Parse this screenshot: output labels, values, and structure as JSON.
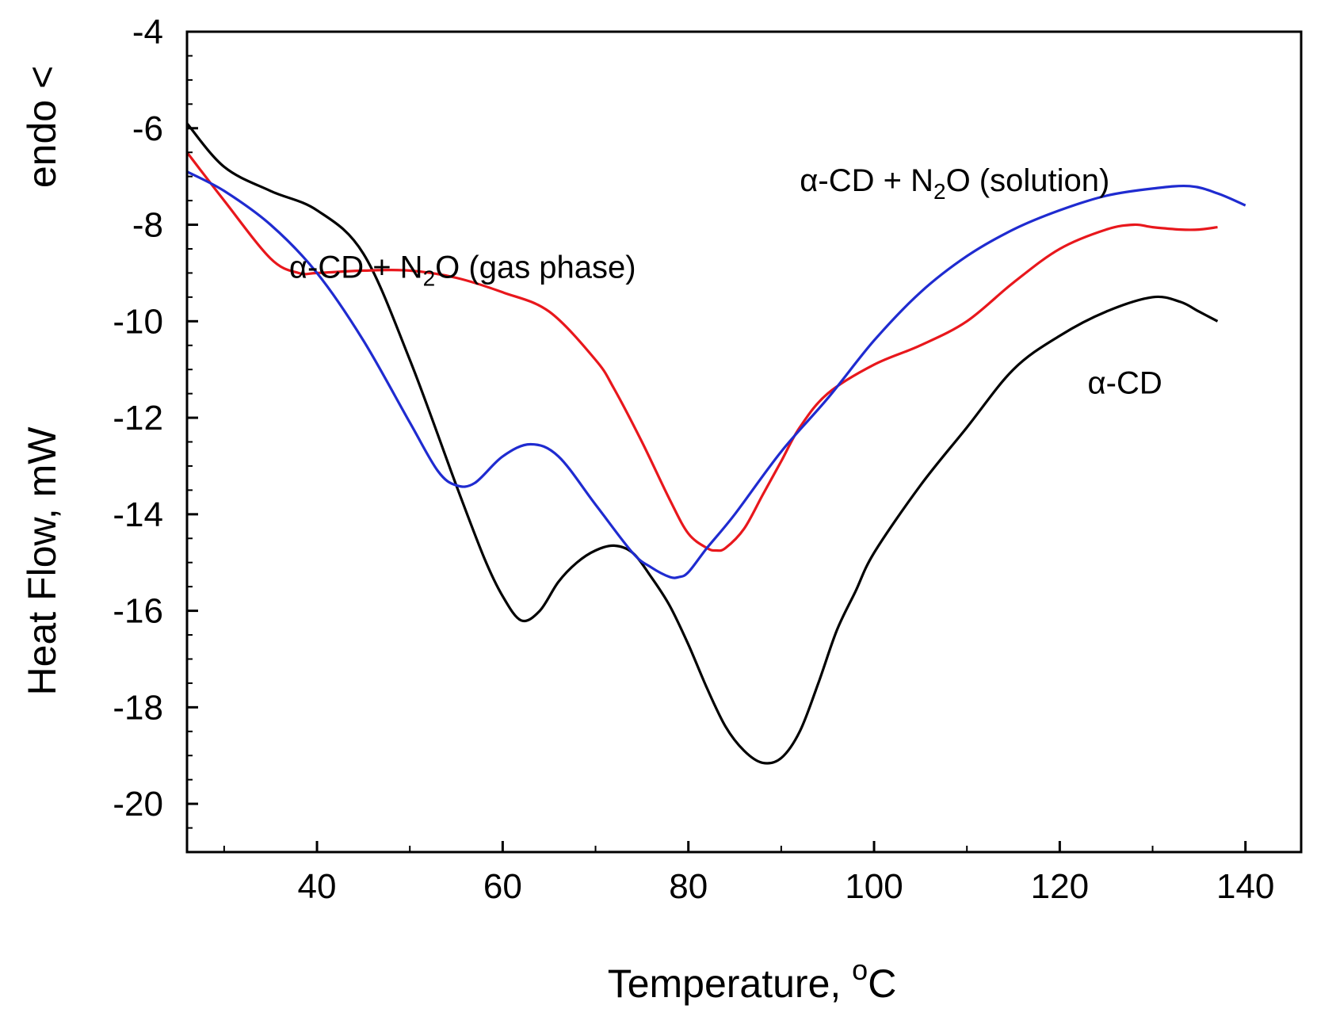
{
  "chart_data": {
    "type": "line",
    "title": "",
    "xlabel": {
      "text": "Temperature, ",
      "sup": "o",
      "unit": "C"
    },
    "ylabel": "Heat Flow, mW",
    "endo_label": "endo <",
    "xlim": [
      26,
      146
    ],
    "ylim": [
      -21,
      -4
    ],
    "xticks": [
      40,
      60,
      80,
      100,
      120,
      140
    ],
    "yticks": [
      -20,
      -18,
      -16,
      -14,
      -12,
      -10,
      -8,
      -6,
      -4
    ],
    "grid": false,
    "series": [
      {
        "name": "α-CD",
        "color": "#000000",
        "x": [
          26,
          30,
          35,
          40,
          45,
          50,
          55,
          58,
          60,
          62,
          64,
          66,
          68,
          70,
          72,
          74,
          76,
          78,
          80,
          82,
          84,
          86,
          88,
          90,
          92,
          94,
          96,
          98,
          100,
          105,
          110,
          115,
          120,
          125,
          130,
          133,
          135,
          137
        ],
        "y": [
          -5.9,
          -6.8,
          -7.3,
          -7.7,
          -8.6,
          -10.8,
          -13.4,
          -14.9,
          -15.7,
          -16.2,
          -16.0,
          -15.4,
          -15.0,
          -14.75,
          -14.65,
          -14.8,
          -15.3,
          -15.9,
          -16.7,
          -17.6,
          -18.4,
          -18.9,
          -19.15,
          -19.05,
          -18.5,
          -17.5,
          -16.4,
          -15.6,
          -14.8,
          -13.4,
          -12.2,
          -11.0,
          -10.3,
          -9.8,
          -9.5,
          -9.6,
          -9.8,
          -10.0
        ]
      },
      {
        "name": "α-CD + N2O (gas phase)",
        "color": "#e8171c",
        "x": [
          26,
          30,
          35,
          38,
          40,
          45,
          50,
          55,
          60,
          65,
          70,
          72,
          75,
          78,
          80,
          82,
          83,
          84,
          86,
          88,
          90,
          92,
          95,
          100,
          105,
          110,
          115,
          120,
          125,
          128,
          130,
          133,
          135,
          137
        ],
        "y": [
          -6.5,
          -7.5,
          -8.7,
          -9.0,
          -9.0,
          -8.95,
          -8.95,
          -9.1,
          -9.4,
          -9.8,
          -10.8,
          -11.4,
          -12.5,
          -13.7,
          -14.4,
          -14.7,
          -14.75,
          -14.7,
          -14.3,
          -13.6,
          -12.9,
          -12.2,
          -11.5,
          -10.9,
          -10.5,
          -10.0,
          -9.2,
          -8.5,
          -8.1,
          -8.0,
          -8.05,
          -8.1,
          -8.1,
          -8.05
        ]
      },
      {
        "name": "α-CD + N2O (solution)",
        "color": "#1f2bd0",
        "x": [
          26,
          30,
          35,
          40,
          45,
          50,
          53,
          55,
          57,
          60,
          63,
          66,
          70,
          74,
          76,
          78,
          79,
          80,
          82,
          85,
          90,
          95,
          100,
          105,
          110,
          115,
          120,
          125,
          130,
          134,
          137,
          140
        ],
        "y": [
          -6.9,
          -7.3,
          -8.0,
          -9.0,
          -10.4,
          -12.1,
          -13.1,
          -13.4,
          -13.35,
          -12.8,
          -12.55,
          -12.8,
          -13.8,
          -14.8,
          -15.1,
          -15.3,
          -15.3,
          -15.2,
          -14.7,
          -14.0,
          -12.7,
          -11.6,
          -10.4,
          -9.4,
          -8.65,
          -8.1,
          -7.7,
          -7.4,
          -7.25,
          -7.2,
          -7.35,
          -7.6
        ]
      }
    ],
    "annotations": [
      {
        "series": 2,
        "text": "α-CD + N",
        "sub": "2",
        "tail": "O (solution)",
        "x": 92,
        "y": -7.3
      },
      {
        "series": 1,
        "text": "α-CD + N",
        "sub": "2",
        "tail": "O (gas phase)",
        "x": 37,
        "y": -9.1
      },
      {
        "series": 0,
        "text": "α-CD",
        "x": 123,
        "y": -11.5
      }
    ]
  }
}
